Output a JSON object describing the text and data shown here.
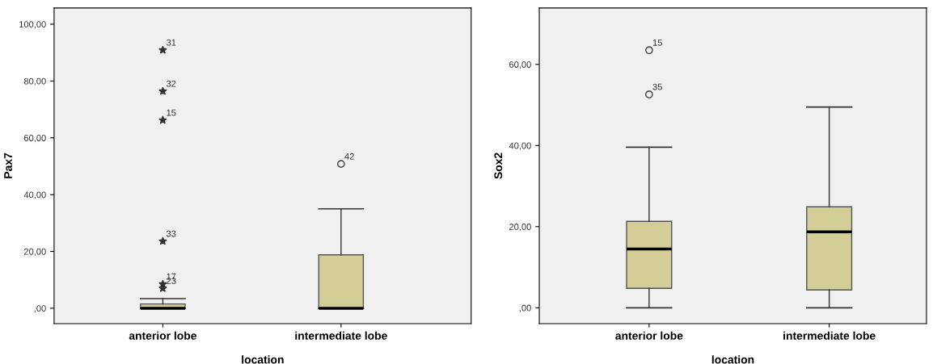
{
  "chart_data": [
    {
      "type": "box",
      "xlabel": "location",
      "ylabel": "Pax7",
      "categories": [
        "anterior lobe",
        "intermediate lobe"
      ],
      "boxes": [
        {
          "low": 0,
          "q1": 0,
          "median": 0,
          "q3": 1.5,
          "high": 3.4
        },
        {
          "low": 0,
          "q1": 0,
          "median": 0,
          "q3": 18.8,
          "high": 35.0
        }
      ],
      "color": "#d3ce97",
      "series": [
        {
          "type": "scatter",
          "marker": "star",
          "color": "#333333",
          "x": [
            "anterior lobe",
            "anterior lobe",
            "anterior lobe",
            "anterior lobe",
            "anterior lobe",
            "anterior lobe"
          ],
          "values": [
            90.9,
            76.4,
            66.2,
            23.6,
            8.5,
            7.0
          ]
        },
        {
          "type": "scatter",
          "marker": "circle",
          "color": "#444444",
          "x": [
            "intermediate lobe"
          ],
          "values": [
            50.8
          ]
        }
      ],
      "annotations": [
        {
          "text": "31",
          "x": "anterior lobe",
          "y": 90.9
        },
        {
          "text": "32",
          "x": "anterior lobe",
          "y": 76.4
        },
        {
          "text": "15",
          "x": "anterior lobe",
          "y": 66.2
        },
        {
          "text": "33",
          "x": "anterior lobe",
          "y": 23.6
        },
        {
          "text": "17",
          "x": "anterior lobe",
          "y": 8.5
        },
        {
          "text": "23",
          "x": "anterior lobe",
          "y": 7.0
        },
        {
          "text": "42",
          "x": "intermediate lobe",
          "y": 50.8
        }
      ],
      "ylim": [
        -5.4,
        105.7
      ],
      "yticks": [
        {
          "value": 0,
          "label": ",00"
        },
        {
          "value": 20,
          "label": "20,00"
        },
        {
          "value": 40,
          "label": "40,00"
        },
        {
          "value": 60,
          "label": "60,00"
        },
        {
          "value": 80,
          "label": "80,00"
        },
        {
          "value": 100,
          "label": "100,00"
        }
      ],
      "grid": false,
      "legend": false
    },
    {
      "type": "box",
      "xlabel": "location",
      "ylabel": "Sox2",
      "categories": [
        "anterior lobe",
        "intermediate lobe"
      ],
      "boxes": [
        {
          "low": 0,
          "q1": 4.8,
          "median": 14.5,
          "q3": 21.3,
          "high": 39.6
        },
        {
          "low": 0,
          "q1": 4.4,
          "median": 18.7,
          "q3": 24.9,
          "high": 49.5
        }
      ],
      "color": "#d3ce97",
      "series": [
        {
          "type": "scatter",
          "marker": "circle",
          "color": "#444444",
          "x": [
            "anterior lobe",
            "anterior lobe"
          ],
          "values": [
            63.5,
            52.6
          ]
        }
      ],
      "annotations": [
        {
          "text": "15",
          "x": "anterior lobe",
          "y": 63.5
        },
        {
          "text": "35",
          "x": "anterior lobe",
          "y": 52.6
        }
      ],
      "ylim": [
        -3.9,
        73.9
      ],
      "yticks": [
        {
          "value": 0,
          "label": ",00"
        },
        {
          "value": 20,
          "label": "20,00"
        },
        {
          "value": 40,
          "label": "40,00"
        },
        {
          "value": 60,
          "label": "60,00"
        }
      ],
      "grid": false,
      "legend": false
    }
  ]
}
